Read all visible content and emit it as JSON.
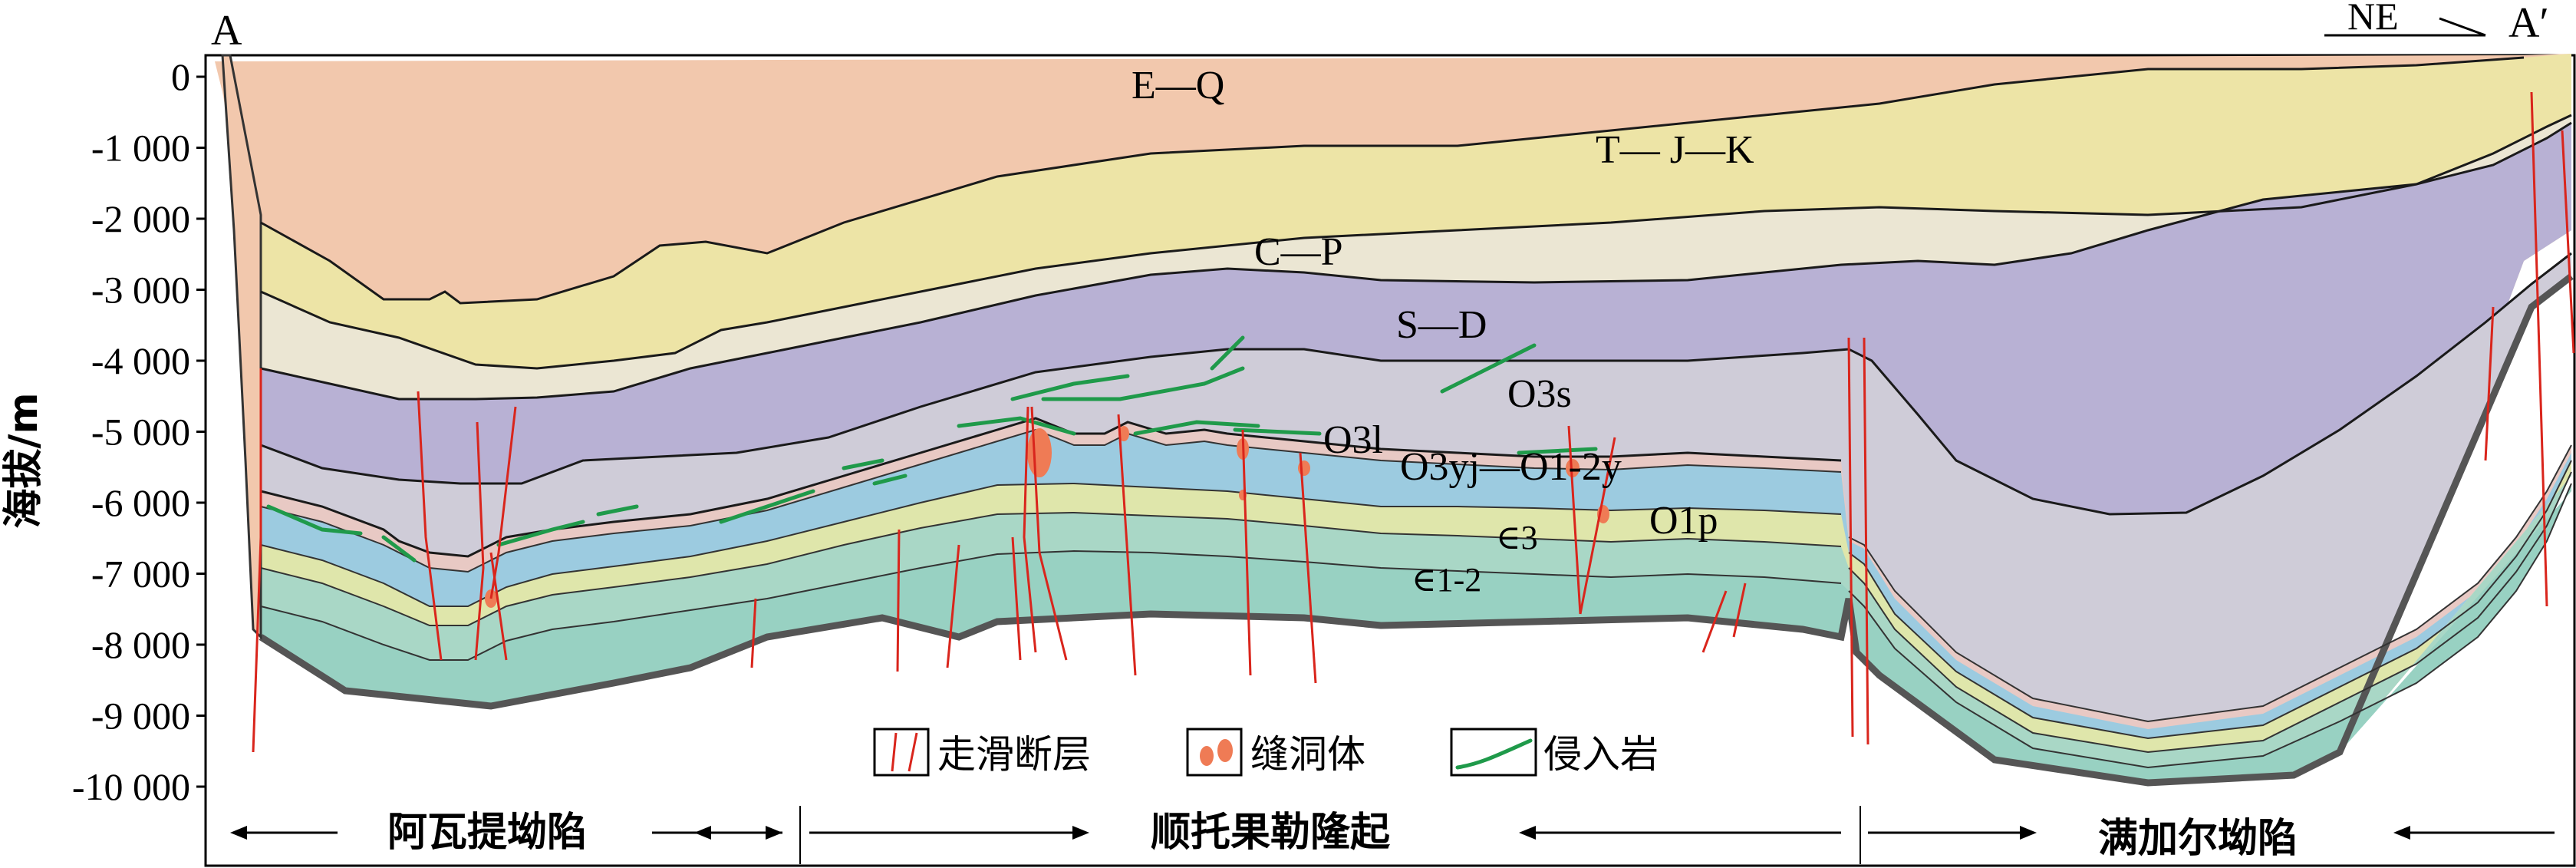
{
  "section_ends": {
    "left": "A",
    "right": "A′",
    "orientation": "NE"
  },
  "axis": {
    "ylabel": "海拔/m",
    "ticks": [
      "0",
      "-1 000",
      "-2 000",
      "-3 000",
      "-4 000",
      "-5 000",
      "-6 000",
      "-7 000",
      "-8 000",
      "-9 000",
      "-10 000"
    ]
  },
  "strata": [
    {
      "label": "E—Q",
      "color": "#f2c8ad"
    },
    {
      "label": "T— J—K",
      "color": "#ede4a6"
    },
    {
      "label": "C—P",
      "color": "#ebe6d3"
    },
    {
      "label": "S—D",
      "color": "#b8b1d4"
    },
    {
      "label": "O3s",
      "color": "#cfccd8"
    },
    {
      "label": "O3l",
      "color": "#e8c9c4"
    },
    {
      "label": "O3yj—O1-2y",
      "color": "#9ccbe0"
    },
    {
      "label": "O1p",
      "color": "#dfe6ab"
    },
    {
      "label": "∈3",
      "color": "#a9d7c6"
    },
    {
      "label": "∈1-2",
      "color": "#98d1c2"
    }
  ],
  "legend": [
    {
      "label": "走滑断层",
      "icon": "fault-icon"
    },
    {
      "label": "缝洞体",
      "icon": "cave-icon"
    },
    {
      "label": "侵入岩",
      "icon": "intrusion-icon"
    }
  ],
  "regions": [
    "阿瓦提坳陷",
    "顺托果勒隆起",
    "满加尔坳陷"
  ]
}
